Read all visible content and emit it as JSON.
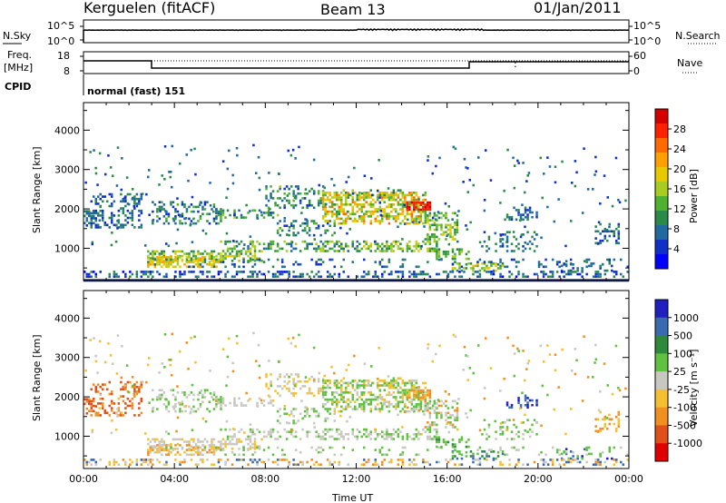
{
  "header": {
    "station": "Kerguelen (fitACF)",
    "beam": "Beam 13",
    "date": "01/Jan/2011"
  },
  "summary_panels": {
    "nsky_label": "N.Sky",
    "nsearch_label": "N.Search",
    "nsky_ticks": [
      "10^5",
      "10^0"
    ],
    "nsearch_ticks": [
      "10^5",
      "10^0"
    ],
    "freq_label_1": "Freq.",
    "freq_label_2": "[MHz]",
    "freq_ticks": [
      "18",
      "8"
    ],
    "nave_label": "Nave",
    "nave_ticks": [
      "60",
      "0"
    ],
    "cpid_label": "CPID",
    "cpid_value": "normal (fast) 151"
  },
  "colorbars": {
    "power_title": "Power [dB]",
    "power_ticks": [
      "28",
      "24",
      "20",
      "16",
      "12",
      "8",
      "4"
    ],
    "power_colors": [
      "#d40000",
      "#ff2000",
      "#ff6a00",
      "#ffa000",
      "#e8c800",
      "#a8cc20",
      "#50b030",
      "#2a8a4a",
      "#206aa0",
      "#1030c8",
      "#0000ff"
    ],
    "velocity_title": "Velocity [m s⁻¹]",
    "velocity_ticks": [
      "1000",
      "500",
      "100",
      "25",
      "-25",
      "-100",
      "-500",
      "-1000"
    ],
    "velocity_colors": [
      "#2020c0",
      "#3a6ab0",
      "#2c8a3a",
      "#60c040",
      "#c8c8c0",
      "#f4c030",
      "#f09020",
      "#e05018",
      "#e00000"
    ]
  },
  "chart_data": [
    {
      "type": "heatmap",
      "title": "Power",
      "ylabel": "Slant Range [km]",
      "xlabel": "",
      "x_ticks": [
        "00:00",
        "04:00",
        "08:00",
        "12:00",
        "16:00",
        "20:00",
        "00:00"
      ],
      "x_range_hours": [
        0,
        24
      ],
      "y_ticks": [
        1000,
        2000,
        3000,
        4000
      ],
      "ylim": [
        180,
        4700
      ],
      "colorbar_range_db": [
        0,
        30
      ]
    },
    {
      "type": "heatmap",
      "title": "Velocity",
      "ylabel": "Slant Range [km]",
      "xlabel": "Time UT",
      "x_ticks": [
        "00:00",
        "04:00",
        "08:00",
        "12:00",
        "16:00",
        "20:00",
        "00:00"
      ],
      "x_range_hours": [
        0,
        24
      ],
      "y_ticks": [
        1000,
        2000,
        3000,
        4000
      ],
      "ylim": [
        180,
        4700
      ],
      "colorbar_range_ms": [
        -1000,
        1000
      ]
    }
  ]
}
